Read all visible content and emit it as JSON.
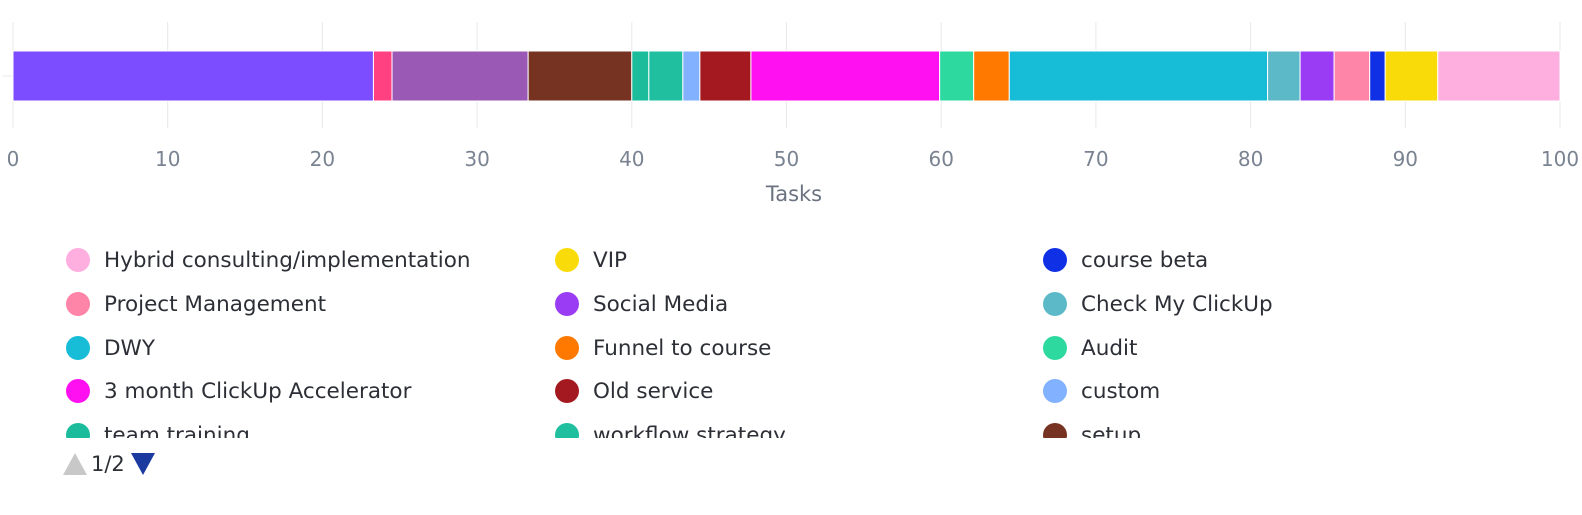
{
  "chart_data": {
    "type": "bar",
    "orientation": "horizontal-stacked",
    "xlabel": "Tasks",
    "xlim": [
      0,
      100
    ],
    "ticks": [
      "0",
      "10",
      "20",
      "30",
      "40",
      "50",
      "60",
      "70",
      "80",
      "90",
      "100"
    ],
    "grid": true,
    "legend_position": "bottom",
    "segments": [
      {
        "name": "Social Media",
        "value": 23.3,
        "color": "#7c4dff"
      },
      {
        "name": "Project Management",
        "value": 1.2,
        "color": "#ff4081"
      },
      {
        "name": "Social Media",
        "value": 8.8,
        "color": "#9b59b6"
      },
      {
        "name": "setup",
        "value": 6.7,
        "color": "#773322"
      },
      {
        "name": "team training",
        "value": 1.1,
        "color": "#1abc9c"
      },
      {
        "name": "workflow strategy",
        "value": 2.2,
        "color": "#1fbf9f"
      },
      {
        "name": "custom",
        "value": 1.1,
        "color": "#82b1ff"
      },
      {
        "name": "Old service",
        "value": 3.3,
        "color": "#a3191f"
      },
      {
        "name": "3 month ClickUp Accelerator",
        "value": 12.2,
        "color": "#ff10f0"
      },
      {
        "name": "Audit",
        "value": 2.2,
        "color": "#2ed9a0"
      },
      {
        "name": "Funnel to course",
        "value": 2.3,
        "color": "#ff7800"
      },
      {
        "name": "DWY",
        "value": 16.7,
        "color": "#17bcd6"
      },
      {
        "name": "Check My ClickUp",
        "value": 2.1,
        "color": "#5cbac8"
      },
      {
        "name": "Social Media",
        "value": 2.2,
        "color": "#9b3cf5"
      },
      {
        "name": "Project Management",
        "value": 2.3,
        "color": "#ff85a8"
      },
      {
        "name": "course beta",
        "value": 1.0,
        "color": "#1030e6"
      },
      {
        "name": "VIP",
        "value": 3.4,
        "color": "#fadb0a"
      },
      {
        "name": "Hybrid consulting/implementation",
        "value": 7.9,
        "color": "#ffaee0"
      }
    ]
  },
  "legend": {
    "items": [
      {
        "label": "Hybrid consulting/implementation",
        "color": "#ffaee0"
      },
      {
        "label": "VIP",
        "color": "#fadb0a"
      },
      {
        "label": "course beta",
        "color": "#1030e6"
      },
      {
        "label": "Project Management",
        "color": "#ff85a8"
      },
      {
        "label": "Social Media",
        "color": "#9b3cf5"
      },
      {
        "label": "Check My ClickUp",
        "color": "#5cbac8"
      },
      {
        "label": "DWY",
        "color": "#17bcd6"
      },
      {
        "label": "Funnel to course",
        "color": "#ff7800"
      },
      {
        "label": "Audit",
        "color": "#2ed9a0"
      },
      {
        "label": "3 month ClickUp Accelerator",
        "color": "#ff10f0"
      },
      {
        "label": "Old service",
        "color": "#a3191f"
      },
      {
        "label": "custom",
        "color": "#82b1ff"
      },
      {
        "label": "team training",
        "color": "#1abc9c"
      },
      {
        "label": "workflow strategy",
        "color": "#1fbf9f"
      },
      {
        "label": "setup",
        "color": "#773322"
      }
    ]
  },
  "pager": {
    "text": "1/2",
    "up_icon": "triangle-up-icon",
    "down_icon": "triangle-down-icon",
    "up_color": "#c8c8c8",
    "down_color": "#1a3aa0"
  }
}
